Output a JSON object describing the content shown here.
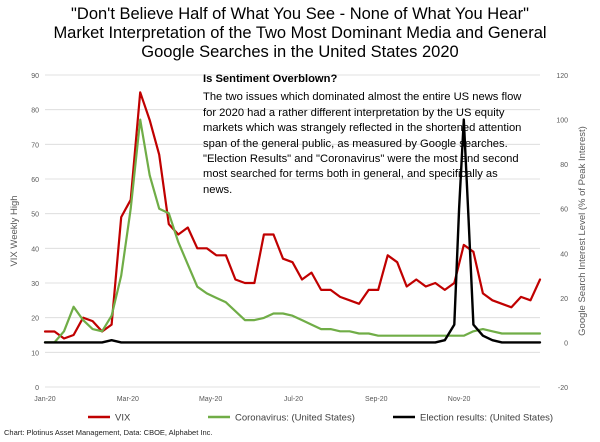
{
  "titles": [
    "\"Don't Believe Half of What You See - None of What You Hear\"",
    "Market Interpretation of the Two Most Dominant Media and General",
    "Google Searches in the United States 2020"
  ],
  "annotation": {
    "heading": "Is Sentiment Overblown?",
    "body": "The two issues which dominated almost the entire US news flow for 2020 had a rather different interpretation by the US equity markets which was strangely reflected in the shortened attention span of the general public, as measured by Google searches. \"Election Results\" and \"Coronavirus\" were the most and second most searched for terms both in general, and specifically as news."
  },
  "source": "Chart: Plotinus Asset Management, Data: CBOE, Alphabet Inc.",
  "colors": {
    "vix": "#c00000",
    "coronavirus": "#70ad47",
    "election": "#000000",
    "grid": "#d9d9d9",
    "axis_text": "#595959"
  },
  "chart_data": {
    "type": "line",
    "x_tick_labels": [
      "Jan-20",
      "Mar-20",
      "May-20",
      "Jul-20",
      "Sep-20",
      "Nov-20"
    ],
    "x_tick_weeks": [
      0,
      8.7,
      17.4,
      26.1,
      34.8,
      43.5
    ],
    "xlim": [
      0,
      52
    ],
    "ylabel_left": "VIX Weekly High",
    "ylim_left": [
      0,
      90
    ],
    "yticks_left": [
      0,
      10,
      20,
      30,
      40,
      50,
      60,
      70,
      80,
      90
    ],
    "ylabel_right": "Google Search Interest Level (% of Peak Interest)",
    "ylim_right": [
      -20,
      120
    ],
    "yticks_right": [
      -20,
      0,
      20,
      40,
      60,
      80,
      100,
      120
    ],
    "grid": "horizontal",
    "legend_position": "bottom",
    "series": [
      {
        "name": "VIX",
        "axis": "left",
        "color_key": "vix",
        "x": [
          0,
          1,
          2,
          3,
          4,
          5,
          6,
          7,
          8,
          9,
          10,
          11,
          12,
          13,
          14,
          15,
          16,
          17,
          18,
          19,
          20,
          21,
          22,
          23,
          24,
          25,
          26,
          27,
          28,
          29,
          30,
          31,
          32,
          33,
          34,
          35,
          36,
          37,
          38,
          39,
          40,
          41,
          42,
          43,
          44,
          45,
          46,
          47,
          48,
          49,
          50,
          51,
          52
        ],
        "y": [
          16,
          16,
          14,
          15,
          20,
          19,
          16,
          18,
          49,
          54,
          85,
          77,
          67,
          47,
          44,
          46,
          40,
          40,
          38,
          38,
          31,
          30,
          30,
          44,
          44,
          37,
          36,
          31,
          33,
          28,
          28,
          26,
          25,
          24,
          28,
          28,
          38,
          36,
          29,
          31,
          29,
          30,
          28,
          30,
          41,
          39,
          27,
          25,
          24,
          23,
          26,
          25,
          31
        ]
      },
      {
        "name": "Coronavirus: (United States)",
        "axis": "right",
        "color_key": "coronavirus",
        "x": [
          0,
          1,
          2,
          3,
          4,
          5,
          6,
          7,
          8,
          9,
          10,
          11,
          12,
          13,
          14,
          15,
          16,
          17,
          18,
          19,
          20,
          21,
          22,
          23,
          24,
          25,
          26,
          27,
          28,
          29,
          30,
          31,
          32,
          33,
          34,
          35,
          36,
          37,
          38,
          39,
          40,
          41,
          42,
          43,
          44,
          45,
          46,
          47,
          48,
          49,
          50,
          51,
          52
        ],
        "y": [
          0,
          0,
          5,
          16,
          10,
          6,
          5,
          12,
          30,
          60,
          100,
          75,
          60,
          58,
          45,
          35,
          25,
          22,
          20,
          18,
          14,
          10,
          10,
          11,
          13,
          13,
          12,
          10,
          8,
          6,
          6,
          5,
          5,
          4,
          4,
          3,
          3,
          3,
          3,
          3,
          3,
          3,
          3,
          3,
          3,
          5,
          6,
          5,
          4,
          4,
          4,
          4,
          4
        ]
      },
      {
        "name": "Election results: (United States)",
        "axis": "right",
        "color_key": "election",
        "x": [
          0,
          1,
          2,
          3,
          4,
          5,
          6,
          7,
          8,
          9,
          10,
          11,
          12,
          13,
          14,
          15,
          16,
          17,
          18,
          19,
          20,
          21,
          22,
          23,
          24,
          25,
          26,
          27,
          28,
          29,
          30,
          31,
          32,
          33,
          34,
          35,
          36,
          37,
          38,
          39,
          40,
          41,
          42,
          43,
          43.5,
          44,
          44.5,
          45,
          46,
          47,
          48,
          49,
          50,
          51,
          52
        ],
        "y": [
          0,
          0,
          0,
          0,
          0,
          0,
          0,
          1,
          0,
          0,
          0,
          0,
          0,
          0,
          0,
          0,
          0,
          0,
          0,
          0,
          0,
          0,
          0,
          0,
          0,
          0,
          0,
          0,
          0,
          0,
          0,
          0,
          0,
          0,
          0,
          0,
          0,
          0,
          0,
          0,
          0,
          0,
          1,
          8,
          60,
          100,
          55,
          8,
          3,
          1,
          0,
          0,
          0,
          0,
          0
        ]
      }
    ]
  }
}
